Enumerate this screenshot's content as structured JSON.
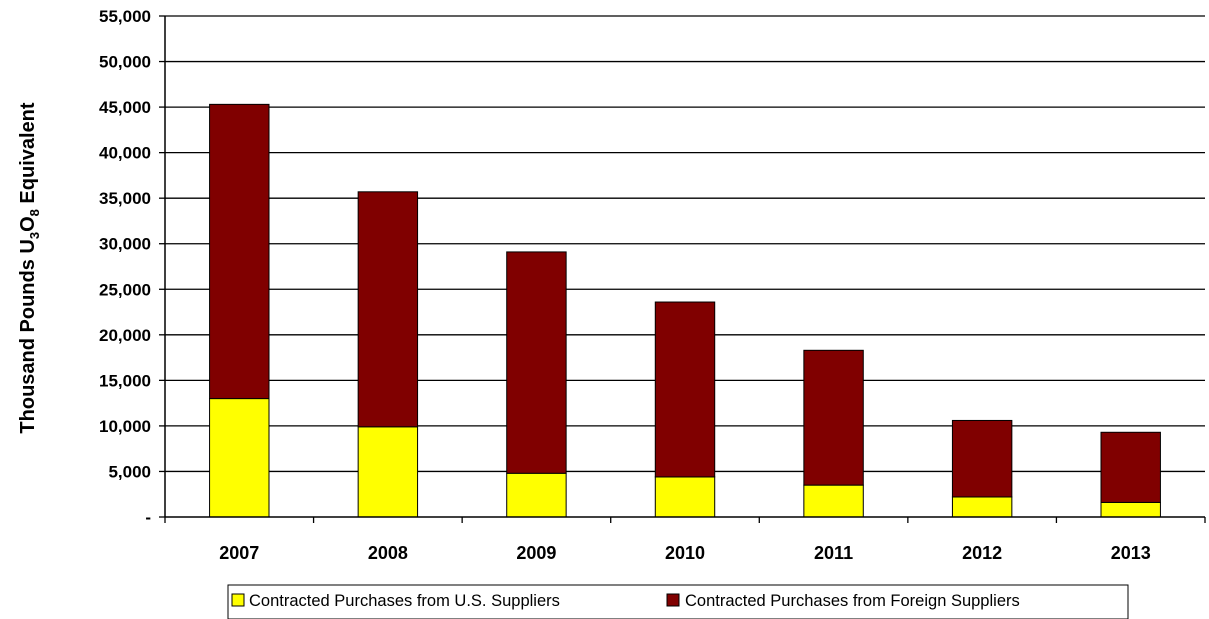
{
  "chart_data": {
    "type": "bar",
    "stacked": true,
    "categories": [
      "2007",
      "2008",
      "2009",
      "2010",
      "2011",
      "2012",
      "2013"
    ],
    "series": [
      {
        "name": "Contracted Purchases from U.S. Suppliers",
        "color": "#ffff00",
        "values": [
          13000,
          9900,
          4800,
          4400,
          3500,
          2200,
          1600
        ]
      },
      {
        "name": "Contracted Purchases from Foreign Suppliers",
        "color": "#800000",
        "values": [
          32300,
          25800,
          24300,
          19200,
          14800,
          8400,
          7700
        ]
      }
    ],
    "ylabel": {
      "main": "Thousand Pounds U",
      "sub1": "3",
      "mid": "O",
      "sub2": "8",
      "end": " Equivalent"
    },
    "xlabel": "",
    "ylim": [
      0,
      55000
    ],
    "yticks": [
      0,
      5000,
      10000,
      15000,
      20000,
      25000,
      30000,
      35000,
      40000,
      45000,
      50000,
      55000
    ],
    "ytick_labels": [
      "-",
      "5,000",
      "10,000",
      "15,000",
      "20,000",
      "25,000",
      "30,000",
      "35,000",
      "40,000",
      "45,000",
      "50,000",
      "55,000"
    ],
    "grid": true,
    "legend_position": "bottom"
  }
}
